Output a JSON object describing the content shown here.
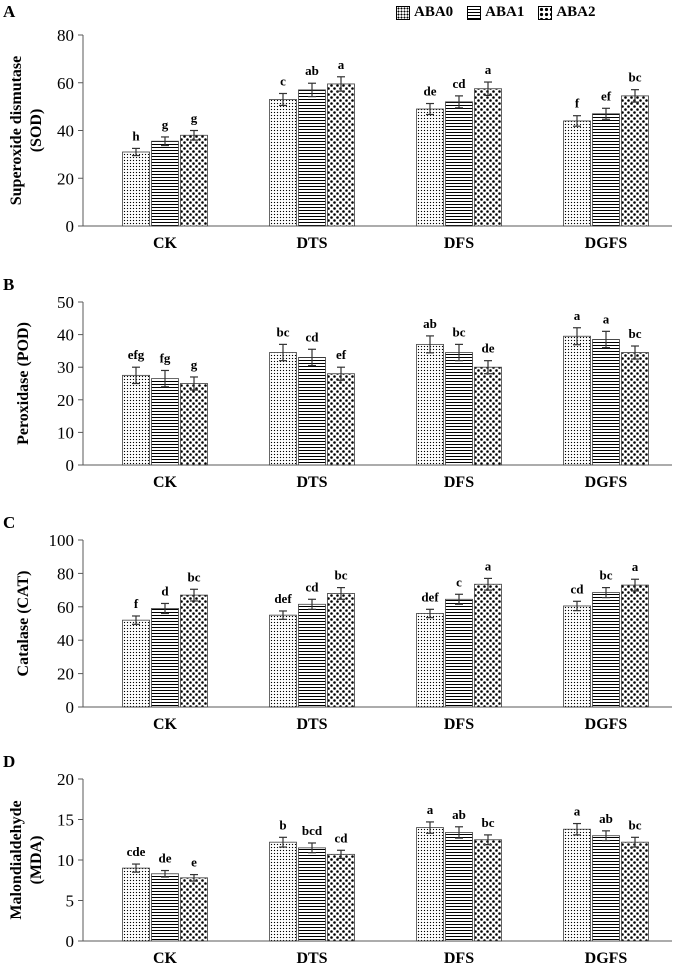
{
  "legend": {
    "items": [
      {
        "label": "ABA0",
        "pattern": "dots"
      },
      {
        "label": "ABA1",
        "pattern": "lines"
      },
      {
        "label": "ABA2",
        "pattern": "bigdots"
      }
    ]
  },
  "chart_data": [
    {
      "type": "bar",
      "panel_label": "A",
      "ylabel_lines": [
        "Superoxide dismutase",
        "(SOD)"
      ],
      "ylim": [
        0,
        80
      ],
      "yticks": [
        0,
        20,
        40,
        60,
        80
      ],
      "categories": [
        "CK",
        "DTS",
        "DFS",
        "DGFS"
      ],
      "series": [
        {
          "name": "ABA0",
          "values": [
            31,
            53,
            49,
            44
          ],
          "errors": [
            1.5,
            2.5,
            2.3,
            2.2
          ],
          "letters": [
            "h",
            "c",
            "de",
            "f"
          ]
        },
        {
          "name": "ABA1",
          "values": [
            35.5,
            57,
            52,
            47
          ],
          "errors": [
            1.8,
            2.8,
            2.5,
            2.3
          ],
          "letters": [
            "g",
            "ab",
            "cd",
            "ef"
          ]
        },
        {
          "name": "ABA2",
          "values": [
            38,
            59.5,
            57.5,
            54.5
          ],
          "errors": [
            2,
            3,
            2.8,
            2.6
          ],
          "letters": [
            "g",
            "a",
            "a",
            "bc"
          ]
        }
      ]
    },
    {
      "type": "bar",
      "panel_label": "B",
      "ylabel_lines": [
        "Peroxidase (POD)"
      ],
      "ylim": [
        0,
        50
      ],
      "yticks": [
        0,
        10,
        20,
        30,
        40,
        50
      ],
      "categories": [
        "CK",
        "DTS",
        "DFS",
        "DGFS"
      ],
      "series": [
        {
          "name": "ABA0",
          "values": [
            27.5,
            34.5,
            37,
            39.5
          ],
          "errors": [
            2.5,
            2.5,
            2.6,
            2.6
          ],
          "letters": [
            "efg",
            "bc",
            "ab",
            "a"
          ]
        },
        {
          "name": "ABA1",
          "values": [
            26.5,
            33,
            34.5,
            38.5
          ],
          "errors": [
            2.5,
            2.5,
            2.5,
            2.5
          ],
          "letters": [
            "fg",
            "cd",
            "bc",
            "a"
          ]
        },
        {
          "name": "ABA2",
          "values": [
            25,
            28,
            30,
            34.5
          ],
          "errors": [
            2,
            2,
            2,
            2
          ],
          "letters": [
            "g",
            "ef",
            "de",
            "bc"
          ]
        }
      ]
    },
    {
      "type": "bar",
      "panel_label": "C",
      "ylabel_lines": [
        "Catalase  (CAT)"
      ],
      "ylim": [
        0,
        100
      ],
      "yticks": [
        0,
        20,
        40,
        60,
        80,
        100
      ],
      "categories": [
        "CK",
        "DTS",
        "DFS",
        "DGFS"
      ],
      "series": [
        {
          "name": "ABA0",
          "values": [
            52,
            55,
            56,
            60.5
          ],
          "errors": [
            2.5,
            2.5,
            2.5,
            2.8
          ],
          "letters": [
            "f",
            "def",
            "def",
            "cd"
          ]
        },
        {
          "name": "ABA1",
          "values": [
            59,
            61.5,
            64.5,
            68.5
          ],
          "errors": [
            3,
            3,
            3,
            3
          ],
          "letters": [
            "d",
            "cd",
            "c",
            "bc"
          ]
        },
        {
          "name": "ABA2",
          "values": [
            67,
            68,
            73.5,
            73
          ],
          "errors": [
            3.5,
            3.5,
            3.5,
            3.5
          ],
          "letters": [
            "bc",
            "bc",
            "a",
            "a"
          ]
        }
      ]
    },
    {
      "type": "bar",
      "panel_label": "D",
      "ylabel_lines": [
        "Malondialdehyde",
        "(MDA)"
      ],
      "ylim": [
        0,
        20
      ],
      "yticks": [
        0,
        5,
        10,
        15,
        20
      ],
      "categories": [
        "CK",
        "DTS",
        "DFS",
        "DGFS"
      ],
      "series": [
        {
          "name": "ABA0",
          "values": [
            9,
            12.2,
            14,
            13.8
          ],
          "errors": [
            0.5,
            0.6,
            0.7,
            0.7
          ],
          "letters": [
            "cde",
            "b",
            "a",
            "a"
          ]
        },
        {
          "name": "ABA1",
          "values": [
            8.3,
            11.5,
            13.4,
            13
          ],
          "errors": [
            0.4,
            0.6,
            0.7,
            0.6
          ],
          "letters": [
            "de",
            "bcd",
            "ab",
            "ab"
          ]
        },
        {
          "name": "ABA2",
          "values": [
            7.8,
            10.7,
            12.5,
            12.2
          ],
          "errors": [
            0.4,
            0.5,
            0.6,
            0.6
          ],
          "letters": [
            "e",
            "cd",
            "bc",
            "bc"
          ]
        }
      ]
    }
  ]
}
